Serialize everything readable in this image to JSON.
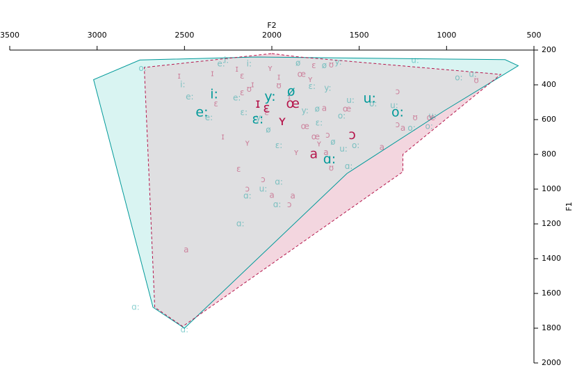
{
  "chart_data": {
    "type": "scatter",
    "title": "",
    "xlabel": "F2",
    "ylabel": "F1",
    "x_reversed": true,
    "y_reversed": true,
    "xlim": [
      3500,
      500
    ],
    "ylim": [
      200,
      2000
    ],
    "x_ticks": [
      3500,
      3000,
      2500,
      2000,
      1500,
      1000,
      500
    ],
    "y_ticks": [
      200,
      400,
      600,
      800,
      1000,
      1200,
      1400,
      1600,
      1800,
      2000
    ],
    "x_axis_position": "top",
    "y_axis_position": "right",
    "grid": false,
    "legend": "none",
    "colors": {
      "teal": "#009999",
      "crimson": "#b5154b",
      "teal_fill": "#d9f4f2",
      "crimson_fill": "#f3d6df",
      "overlap_fill": "#dfdfe1"
    },
    "hulls": [
      {
        "color": "teal",
        "style": "solid",
        "points": [
          [
            2755,
            257
          ],
          [
            2090,
            240
          ],
          [
            665,
            255
          ],
          [
            590,
            290
          ],
          [
            1015,
            550
          ],
          [
            1570,
            910
          ],
          [
            2500,
            1800
          ],
          [
            2680,
            1680
          ],
          [
            3020,
            370
          ],
          [
            2755,
            257
          ]
        ]
      },
      {
        "color": "crimson",
        "style": "dashed",
        "points": [
          [
            2000,
            220
          ],
          [
            1840,
            240
          ],
          [
            690,
            340
          ],
          [
            1250,
            800
          ],
          [
            1250,
            900
          ],
          [
            2510,
            1790
          ],
          [
            2670,
            1680
          ],
          [
            2730,
            300
          ],
          [
            2000,
            220
          ]
        ]
      }
    ],
    "series": [
      {
        "color": "teal",
        "means": [
          {
            "label": "i:",
            "x": 2330,
            "y": 455
          },
          {
            "label": "e:",
            "x": 2400,
            "y": 560
          },
          {
            "label": "y:",
            "x": 2010,
            "y": 470
          },
          {
            "label": "ø",
            "x": 1890,
            "y": 440
          },
          {
            "label": "ɛ:",
            "x": 2080,
            "y": 600
          },
          {
            "label": "u:",
            "x": 1440,
            "y": 480
          },
          {
            "label": "o:",
            "x": 1280,
            "y": 560
          },
          {
            "label": "ɑ:",
            "x": 1670,
            "y": 830
          }
        ],
        "tokens": [
          {
            "label": "i:",
            "x": 2510,
            "y": 400
          },
          {
            "label": "e:",
            "x": 2470,
            "y": 470
          },
          {
            "label": "e:",
            "x": 2360,
            "y": 590
          },
          {
            "label": "e:",
            "x": 2200,
            "y": 475
          },
          {
            "label": "ɛ:",
            "x": 2160,
            "y": 560
          },
          {
            "label": "i:",
            "x": 2130,
            "y": 280
          },
          {
            "label": "i:",
            "x": 2260,
            "y": 260
          },
          {
            "label": "y:",
            "x": 2070,
            "y": 590
          },
          {
            "label": "ø",
            "x": 2020,
            "y": 660
          },
          {
            "label": "ɛ:",
            "x": 1960,
            "y": 750
          },
          {
            "label": "ø",
            "x": 1850,
            "y": 275
          },
          {
            "label": "y:",
            "x": 1810,
            "y": 550
          },
          {
            "label": "ø",
            "x": 1740,
            "y": 540
          },
          {
            "label": "y:",
            "x": 1620,
            "y": 270
          },
          {
            "label": "ɛ:",
            "x": 1730,
            "y": 620
          },
          {
            "label": "ø",
            "x": 1650,
            "y": 730
          },
          {
            "label": "u:",
            "x": 1590,
            "y": 770
          },
          {
            "label": "ɑ:",
            "x": 1560,
            "y": 870
          },
          {
            "label": "o:",
            "x": 1600,
            "y": 580
          },
          {
            "label": "u:",
            "x": 1550,
            "y": 490
          },
          {
            "label": "o:",
            "x": 1420,
            "y": 510
          },
          {
            "label": "u:",
            "x": 1300,
            "y": 520
          },
          {
            "label": "o:",
            "x": 1200,
            "y": 650
          },
          {
            "label": "u:",
            "x": 1180,
            "y": 260
          },
          {
            "label": "o:",
            "x": 930,
            "y": 360
          },
          {
            "label": "u:",
            "x": 850,
            "y": 340
          },
          {
            "label": "ɑ:",
            "x": 1960,
            "y": 960
          },
          {
            "label": "u:",
            "x": 2050,
            "y": 1000
          },
          {
            "label": "ɑ:",
            "x": 1970,
            "y": 1090
          },
          {
            "label": "ɑ:",
            "x": 2180,
            "y": 1200
          },
          {
            "label": "ɑ:",
            "x": 2140,
            "y": 1040
          },
          {
            "label": "ɑ:",
            "x": 2500,
            "y": 1810
          },
          {
            "label": "ɑ:",
            "x": 2780,
            "y": 1680
          },
          {
            "label": "o:",
            "x": 2740,
            "y": 305
          },
          {
            "label": "o:",
            "x": 1520,
            "y": 750
          },
          {
            "label": "ɛ:",
            "x": 1770,
            "y": 410
          },
          {
            "label": "y:",
            "x": 1680,
            "y": 420
          },
          {
            "label": "ø",
            "x": 1700,
            "y": 290
          },
          {
            "label": "e:",
            "x": 2290,
            "y": 280
          },
          {
            "label": "o:",
            "x": 1100,
            "y": 640
          },
          {
            "label": "u:",
            "x": 1080,
            "y": 580
          }
        ]
      },
      {
        "color": "crimson",
        "means": [
          {
            "label": "ɪ",
            "x": 2080,
            "y": 510
          },
          {
            "label": "ɛ",
            "x": 2030,
            "y": 535
          },
          {
            "label": "œ",
            "x": 1880,
            "y": 510
          },
          {
            "label": "ʏ",
            "x": 1940,
            "y": 610
          },
          {
            "label": "a",
            "x": 1760,
            "y": 800
          },
          {
            "label": "ɔ",
            "x": 1540,
            "y": 690
          }
        ],
        "tokens": [
          {
            "label": "ɪ",
            "x": 2530,
            "y": 350
          },
          {
            "label": "ɪ",
            "x": 2340,
            "y": 335
          },
          {
            "label": "ɪ",
            "x": 2200,
            "y": 310
          },
          {
            "label": "ɛ",
            "x": 2170,
            "y": 350
          },
          {
            "label": "ʊ",
            "x": 2130,
            "y": 425
          },
          {
            "label": "ɪ",
            "x": 2110,
            "y": 400
          },
          {
            "label": "ɛ",
            "x": 2170,
            "y": 445
          },
          {
            "label": "ɛ",
            "x": 2320,
            "y": 510
          },
          {
            "label": "ɪ",
            "x": 2280,
            "y": 700
          },
          {
            "label": "ʏ",
            "x": 2140,
            "y": 735
          },
          {
            "label": "ɛ",
            "x": 2190,
            "y": 885
          },
          {
            "label": "ɔ",
            "x": 2140,
            "y": 1000
          },
          {
            "label": "ɔ",
            "x": 2050,
            "y": 945
          },
          {
            "label": "a",
            "x": 2000,
            "y": 1035
          },
          {
            "label": "a",
            "x": 1880,
            "y": 1040
          },
          {
            "label": "ɔ",
            "x": 1900,
            "y": 1090
          },
          {
            "label": "a",
            "x": 2490,
            "y": 1350
          },
          {
            "label": "ʏ",
            "x": 2010,
            "y": 305
          },
          {
            "label": "ɪ",
            "x": 1960,
            "y": 355
          },
          {
            "label": "œ",
            "x": 1830,
            "y": 340
          },
          {
            "label": "ɛ",
            "x": 1760,
            "y": 290
          },
          {
            "label": "ʏ",
            "x": 1780,
            "y": 370
          },
          {
            "label": "ʊ",
            "x": 1660,
            "y": 285
          },
          {
            "label": "a",
            "x": 1700,
            "y": 535
          },
          {
            "label": "œ",
            "x": 1810,
            "y": 640
          },
          {
            "label": "œ",
            "x": 1750,
            "y": 700
          },
          {
            "label": "ʏ",
            "x": 1730,
            "y": 740
          },
          {
            "label": "ɔ",
            "x": 1680,
            "y": 690
          },
          {
            "label": "a",
            "x": 1690,
            "y": 790
          },
          {
            "label": "œ",
            "x": 1570,
            "y": 540
          },
          {
            "label": "ʏ",
            "x": 1860,
            "y": 790
          },
          {
            "label": "ʊ",
            "x": 1660,
            "y": 880
          },
          {
            "label": "a",
            "x": 1370,
            "y": 760
          },
          {
            "label": "a",
            "x": 1250,
            "y": 650
          },
          {
            "label": "ɔ",
            "x": 1280,
            "y": 630
          },
          {
            "label": "ʊ",
            "x": 1180,
            "y": 590
          },
          {
            "label": "œ",
            "x": 1090,
            "y": 590
          },
          {
            "label": "ʊ",
            "x": 830,
            "y": 375
          },
          {
            "label": "ɔ",
            "x": 1280,
            "y": 440
          },
          {
            "label": "ʊ",
            "x": 1960,
            "y": 405
          },
          {
            "label": "ɪ",
            "x": 1900,
            "y": 470
          },
          {
            "label": "ɛ",
            "x": 2030,
            "y": 560
          }
        ]
      }
    ]
  }
}
